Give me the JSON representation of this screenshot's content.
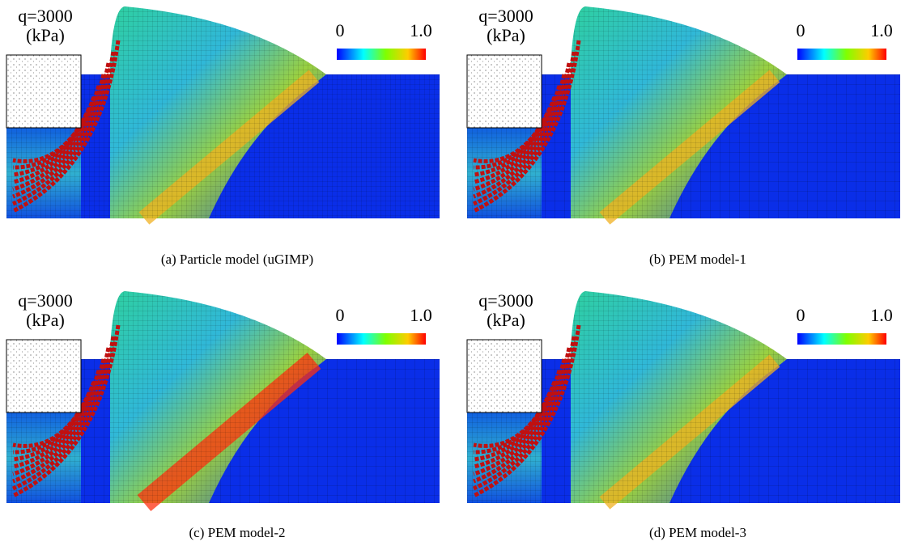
{
  "panels": [
    {
      "load": "q=3000",
      "unit": "(kPa)",
      "colorbar_min": "0",
      "colorbar_max": "1.0",
      "caption": "(a) Particle model (uGIMP)"
    },
    {
      "load": "q=3000",
      "unit": "(kPa)",
      "colorbar_min": "0",
      "colorbar_max": "1.0",
      "caption": "(b) PEM model-1"
    },
    {
      "load": "q=3000",
      "unit": "(kPa)",
      "colorbar_min": "0",
      "colorbar_max": "1.0",
      "caption": "(c) PEM model-2"
    },
    {
      "load": "q=3000",
      "unit": "(kPa)",
      "colorbar_min": "0",
      "colorbar_max": "1.0",
      "caption": "(d) PEM model-3"
    }
  ]
}
